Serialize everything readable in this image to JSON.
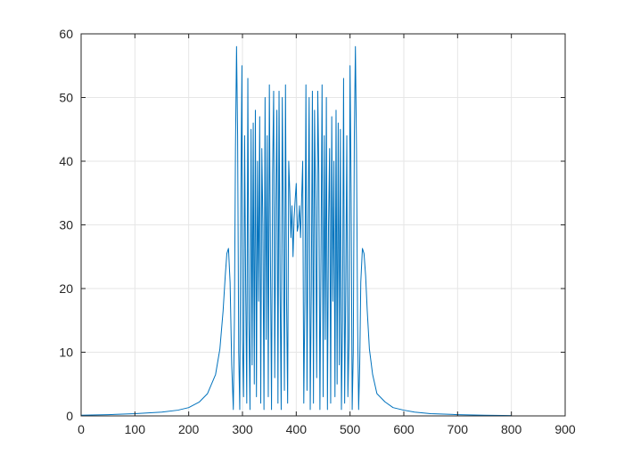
{
  "chart_data": {
    "type": "line",
    "title": "",
    "xlabel": "",
    "ylabel": "",
    "xlim": [
      0,
      900
    ],
    "ylim": [
      0,
      60
    ],
    "xticks": [
      0,
      100,
      200,
      300,
      400,
      500,
      600,
      700,
      800,
      900
    ],
    "yticks": [
      0,
      10,
      20,
      30,
      40,
      50,
      60
    ],
    "xtick_labels": [
      "0",
      "100",
      "200",
      "300",
      "400",
      "500",
      "600",
      "700",
      "800",
      "900"
    ],
    "ytick_labels": [
      "0",
      "10",
      "20",
      "30",
      "40",
      "50",
      "60"
    ],
    "grid": true,
    "legend": "none",
    "line_color": "#0072BD",
    "series": [
      {
        "x": [
          0,
          50,
          100,
          150,
          180,
          200,
          220,
          235,
          250,
          258,
          264,
          268,
          271,
          274,
          277,
          280,
          283,
          285,
          287,
          289,
          291,
          293,
          295,
          297,
          299,
          300,
          302,
          304,
          306,
          308,
          310,
          312,
          314,
          316,
          318,
          320,
          322,
          324,
          326,
          328,
          330,
          332,
          334,
          336,
          338,
          340,
          342,
          344,
          346,
          348,
          350,
          352,
          354,
          356,
          358,
          360,
          362,
          364,
          366,
          368,
          370,
          372,
          374,
          376,
          378,
          380,
          382,
          384,
          386,
          388,
          390,
          392,
          394,
          396,
          398,
          400,
          402,
          404,
          406,
          408,
          410,
          412,
          414,
          416,
          418,
          420,
          422,
          424,
          426,
          428,
          430,
          432,
          434,
          436,
          438,
          440,
          442,
          444,
          446,
          448,
          450,
          452,
          454,
          456,
          458,
          460,
          462,
          464,
          466,
          468,
          470,
          472,
          474,
          476,
          478,
          480,
          482,
          484,
          486,
          488,
          490,
          492,
          494,
          496,
          498,
          500,
          502,
          504,
          506,
          508,
          510,
          512,
          514,
          516,
          518,
          520,
          523,
          526,
          529,
          532,
          536,
          542,
          550,
          565,
          580,
          600,
          620,
          650,
          700,
          750,
          800
        ],
        "y": [
          0.1,
          0.2,
          0.35,
          0.6,
          0.9,
          1.3,
          2.2,
          3.5,
          6.5,
          10.5,
          16.5,
          22,
          25.5,
          26.3,
          21,
          8,
          1,
          15,
          42,
          58,
          44,
          10,
          1,
          35,
          55,
          12,
          3,
          44,
          20,
          2,
          53,
          15,
          1,
          45,
          8,
          46,
          5,
          48,
          3,
          40,
          18,
          47,
          2,
          42,
          30,
          1,
          50,
          12,
          44,
          3,
          52,
          25,
          1,
          38,
          51,
          6,
          33,
          48,
          2,
          51,
          20,
          1,
          50,
          30,
          4,
          52,
          18,
          2,
          40,
          35,
          28,
          33,
          25,
          31,
          34,
          36.5,
          29,
          30,
          33,
          28,
          34,
          40,
          2,
          18,
          52,
          4,
          30,
          50,
          1,
          20,
          51,
          2,
          48,
          33,
          6,
          51,
          38,
          1,
          25,
          52,
          3,
          44,
          12,
          50,
          1,
          30,
          42,
          2,
          47,
          18,
          40,
          3,
          48,
          5,
          46,
          8,
          45,
          1,
          15,
          53,
          2,
          20,
          44,
          3,
          12,
          55,
          35,
          1,
          10,
          44,
          58,
          42,
          15,
          1,
          8,
          21,
          26.3,
          25.5,
          22,
          16.5,
          10.5,
          6.5,
          3.5,
          2.2,
          1.3,
          0.9,
          0.6,
          0.35,
          0.2,
          0.1,
          0.05
        ]
      }
    ]
  }
}
